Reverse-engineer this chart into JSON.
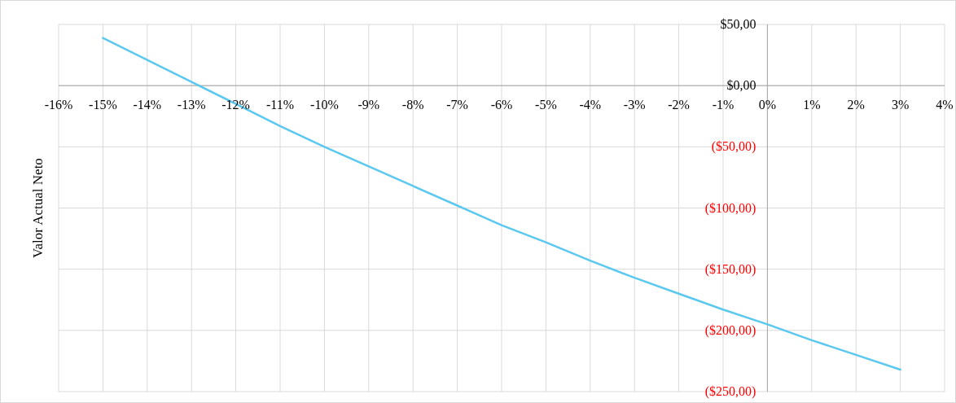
{
  "chart_data": {
    "type": "line",
    "ylabel": "Valor Actual Neto",
    "x": [
      -15,
      -14,
      -13,
      -12,
      -11,
      -10,
      -9,
      -8,
      -7,
      -6,
      -5,
      -4,
      -3,
      -2,
      -1,
      0,
      1,
      2,
      3
    ],
    "series": [
      {
        "color": "#5bc8f0",
        "values": [
          39,
          21,
          3,
          -15,
          -33,
          -50,
          -66,
          -82,
          -98,
          -114,
          -128,
          -143,
          -157,
          -170,
          -183,
          -195,
          -208,
          -220,
          -232
        ]
      }
    ],
    "xlim": [
      -16,
      4
    ],
    "xticks": [
      {
        "value": -16,
        "label": "-16%"
      },
      {
        "value": -15,
        "label": "-15%"
      },
      {
        "value": -14,
        "label": "-14%"
      },
      {
        "value": -13,
        "label": "-13%"
      },
      {
        "value": -12,
        "label": "-12%"
      },
      {
        "value": -11,
        "label": "-11%"
      },
      {
        "value": -10,
        "label": "-10%"
      },
      {
        "value": -9,
        "label": "-9%"
      },
      {
        "value": -8,
        "label": "-8%"
      },
      {
        "value": -7,
        "label": "-7%"
      },
      {
        "value": -6,
        "label": "-6%"
      },
      {
        "value": -5,
        "label": "-5%"
      },
      {
        "value": -4,
        "label": "-4%"
      },
      {
        "value": -3,
        "label": "-3%"
      },
      {
        "value": -2,
        "label": "-2%"
      },
      {
        "value": -1,
        "label": "-1%"
      },
      {
        "value": 0,
        "label": "0%"
      },
      {
        "value": 1,
        "label": "1%"
      },
      {
        "value": 2,
        "label": "2%"
      },
      {
        "value": 3,
        "label": "3%"
      },
      {
        "value": 4,
        "label": "4%"
      }
    ],
    "ylim": [
      -250,
      50
    ],
    "yticks": [
      {
        "value": -250,
        "label": "($250,00)"
      },
      {
        "value": -200,
        "label": "($200,00)"
      },
      {
        "value": -150,
        "label": "($150,00)"
      },
      {
        "value": -100,
        "label": "($100,00)"
      },
      {
        "value": -50,
        "label": "($50,00)"
      },
      {
        "value": 0,
        "label": "$0,00"
      },
      {
        "value": 50,
        "label": "$50,00"
      }
    ],
    "grid": true,
    "marker": "none",
    "line_style": "solid"
  }
}
